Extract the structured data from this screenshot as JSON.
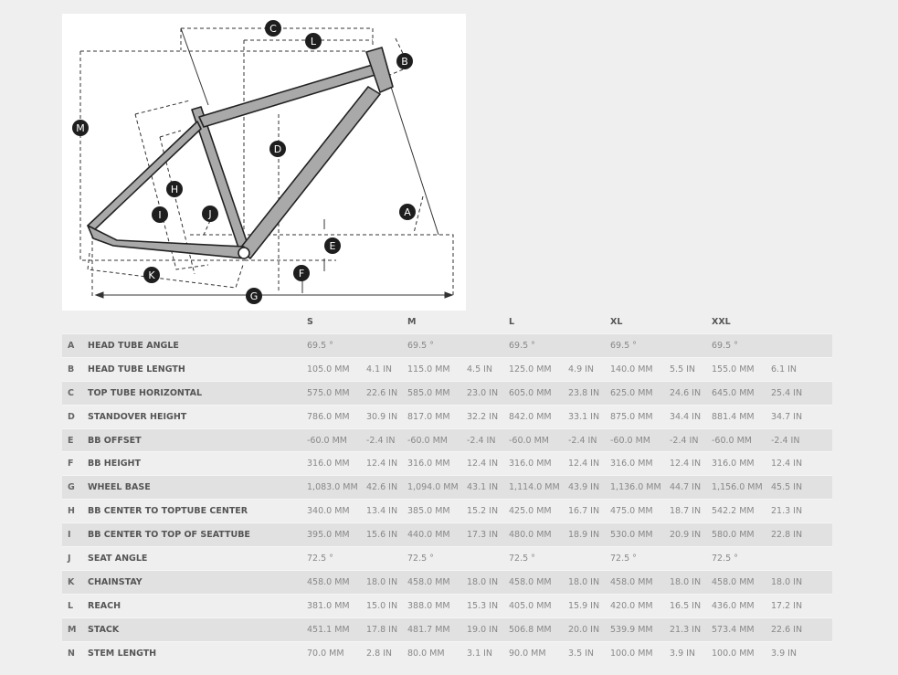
{
  "diagram": {
    "labels": [
      "A",
      "B",
      "C",
      "D",
      "E",
      "F",
      "G",
      "H",
      "I",
      "J",
      "K",
      "L",
      "M"
    ]
  },
  "table": {
    "sizes": [
      "S",
      "M",
      "L",
      "XL",
      "XXL"
    ],
    "rows": [
      {
        "letter": "A",
        "name": "HEAD TUBE ANGLE",
        "values": [
          [
            "69.5 °",
            ""
          ],
          [
            "69.5 °",
            ""
          ],
          [
            "69.5 °",
            ""
          ],
          [
            "69.5 °",
            ""
          ],
          [
            "69.5 °",
            ""
          ]
        ]
      },
      {
        "letter": "B",
        "name": "HEAD TUBE LENGTH",
        "values": [
          [
            "105.0 MM",
            "4.1 IN"
          ],
          [
            "115.0 MM",
            "4.5 IN"
          ],
          [
            "125.0 MM",
            "4.9 IN"
          ],
          [
            "140.0 MM",
            "5.5 IN"
          ],
          [
            "155.0 MM",
            "6.1 IN"
          ]
        ]
      },
      {
        "letter": "C",
        "name": "TOP TUBE HORIZONTAL",
        "values": [
          [
            "575.0 MM",
            "22.6 IN"
          ],
          [
            "585.0 MM",
            "23.0 IN"
          ],
          [
            "605.0 MM",
            "23.8 IN"
          ],
          [
            "625.0 MM",
            "24.6 IN"
          ],
          [
            "645.0 MM",
            "25.4 IN"
          ]
        ]
      },
      {
        "letter": "D",
        "name": "STANDOVER HEIGHT",
        "values": [
          [
            "786.0 MM",
            "30.9 IN"
          ],
          [
            "817.0 MM",
            "32.2 IN"
          ],
          [
            "842.0 MM",
            "33.1 IN"
          ],
          [
            "875.0 MM",
            "34.4 IN"
          ],
          [
            "881.4 MM",
            "34.7 IN"
          ]
        ]
      },
      {
        "letter": "E",
        "name": "BB OFFSET",
        "values": [
          [
            "-60.0 MM",
            "-2.4 IN"
          ],
          [
            "-60.0 MM",
            "-2.4 IN"
          ],
          [
            "-60.0 MM",
            "-2.4 IN"
          ],
          [
            "-60.0 MM",
            "-2.4 IN"
          ],
          [
            "-60.0 MM",
            "-2.4 IN"
          ]
        ]
      },
      {
        "letter": "F",
        "name": "BB HEIGHT",
        "values": [
          [
            "316.0 MM",
            "12.4 IN"
          ],
          [
            "316.0 MM",
            "12.4 IN"
          ],
          [
            "316.0 MM",
            "12.4 IN"
          ],
          [
            "316.0 MM",
            "12.4 IN"
          ],
          [
            "316.0 MM",
            "12.4 IN"
          ]
        ]
      },
      {
        "letter": "G",
        "name": "WHEEL BASE",
        "values": [
          [
            "1,083.0 MM",
            "42.6 IN"
          ],
          [
            "1,094.0 MM",
            "43.1 IN"
          ],
          [
            "1,114.0 MM",
            "43.9 IN"
          ],
          [
            "1,136.0 MM",
            "44.7 IN"
          ],
          [
            "1,156.0 MM",
            "45.5 IN"
          ]
        ]
      },
      {
        "letter": "H",
        "name": "BB CENTER TO TOPTUBE CENTER",
        "values": [
          [
            "340.0 MM",
            "13.4 IN"
          ],
          [
            "385.0 MM",
            "15.2 IN"
          ],
          [
            "425.0 MM",
            "16.7 IN"
          ],
          [
            "475.0 MM",
            "18.7 IN"
          ],
          [
            "542.2 MM",
            "21.3 IN"
          ]
        ]
      },
      {
        "letter": "I",
        "name": "BB CENTER TO TOP OF SEATTUBE",
        "values": [
          [
            "395.0 MM",
            "15.6 IN"
          ],
          [
            "440.0 MM",
            "17.3 IN"
          ],
          [
            "480.0 MM",
            "18.9 IN"
          ],
          [
            "530.0 MM",
            "20.9 IN"
          ],
          [
            "580.0 MM",
            "22.8 IN"
          ]
        ]
      },
      {
        "letter": "J",
        "name": "SEAT ANGLE",
        "values": [
          [
            "72.5 °",
            ""
          ],
          [
            "72.5 °",
            ""
          ],
          [
            "72.5 °",
            ""
          ],
          [
            "72.5 °",
            ""
          ],
          [
            "72.5 °",
            ""
          ]
        ]
      },
      {
        "letter": "K",
        "name": "CHAINSTAY",
        "values": [
          [
            "458.0 MM",
            "18.0 IN"
          ],
          [
            "458.0 MM",
            "18.0 IN"
          ],
          [
            "458.0 MM",
            "18.0 IN"
          ],
          [
            "458.0 MM",
            "18.0 IN"
          ],
          [
            "458.0 MM",
            "18.0 IN"
          ]
        ]
      },
      {
        "letter": "L",
        "name": "REACH",
        "values": [
          [
            "381.0 MM",
            "15.0 IN"
          ],
          [
            "388.0 MM",
            "15.3 IN"
          ],
          [
            "405.0 MM",
            "15.9 IN"
          ],
          [
            "420.0 MM",
            "16.5 IN"
          ],
          [
            "436.0 MM",
            "17.2 IN"
          ]
        ]
      },
      {
        "letter": "M",
        "name": "STACK",
        "values": [
          [
            "451.1 MM",
            "17.8 IN"
          ],
          [
            "481.7 MM",
            "19.0 IN"
          ],
          [
            "506.8 MM",
            "20.0 IN"
          ],
          [
            "539.9 MM",
            "21.3 IN"
          ],
          [
            "573.4 MM",
            "22.6 IN"
          ]
        ]
      },
      {
        "letter": "N",
        "name": "STEM LENGTH",
        "values": [
          [
            "70.0 MM",
            "2.8 IN"
          ],
          [
            "80.0 MM",
            "3.1 IN"
          ],
          [
            "90.0 MM",
            "3.5 IN"
          ],
          [
            "100.0 MM",
            "3.9 IN"
          ],
          [
            "100.0 MM",
            "3.9 IN"
          ]
        ]
      }
    ]
  }
}
